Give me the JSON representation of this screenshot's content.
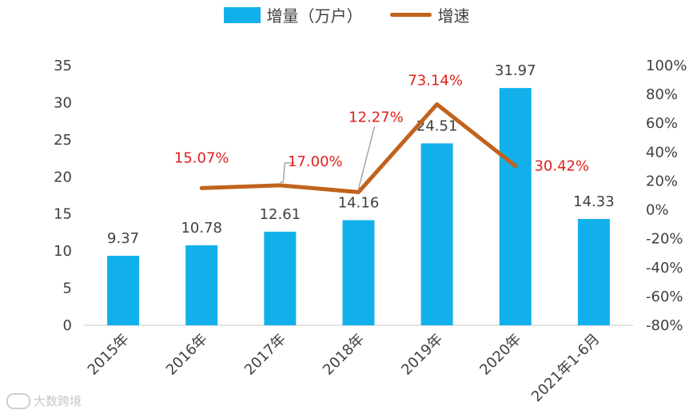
{
  "legend": {
    "bar_label": "增量（万户）",
    "line_label": "增速"
  },
  "watermark": "大数跨境",
  "colors": {
    "bar": "#12b0ea",
    "line": "#c0621d",
    "rate_label": "#e0201b",
    "axis_text": "#404040"
  },
  "chart_data": {
    "type": "bar",
    "categories": [
      "2015年",
      "2016年",
      "2017年",
      "2018年",
      "2019年",
      "2020年",
      "2021年1-6月"
    ],
    "series": [
      {
        "name": "增量（万户）",
        "type": "bar",
        "axis": "left",
        "values": [
          9.37,
          10.78,
          12.61,
          14.16,
          24.51,
          31.97,
          14.33
        ],
        "labels": [
          "9.37",
          "10.78",
          "12.61",
          "14.16",
          "24.51",
          "31.97",
          "14.33"
        ]
      },
      {
        "name": "增速",
        "type": "line",
        "axis": "right",
        "values": [
          null,
          15.07,
          17.0,
          12.27,
          73.14,
          30.42,
          null
        ],
        "labels": [
          "",
          "15.07%",
          "17.00%",
          "12.27%",
          "73.14%",
          "30.42%",
          ""
        ]
      }
    ],
    "y_left": {
      "min": 0,
      "max": 35,
      "ticks": [
        "0",
        "5",
        "10",
        "15",
        "20",
        "25",
        "30",
        "35"
      ]
    },
    "y_right": {
      "min": -80,
      "max": 100,
      "ticks": [
        "-80%",
        "-60%",
        "-40%",
        "-20%",
        "0%",
        "20%",
        "40%",
        "60%",
        "80%",
        "100%"
      ]
    },
    "legend_position": "top-center",
    "grid": false
  }
}
